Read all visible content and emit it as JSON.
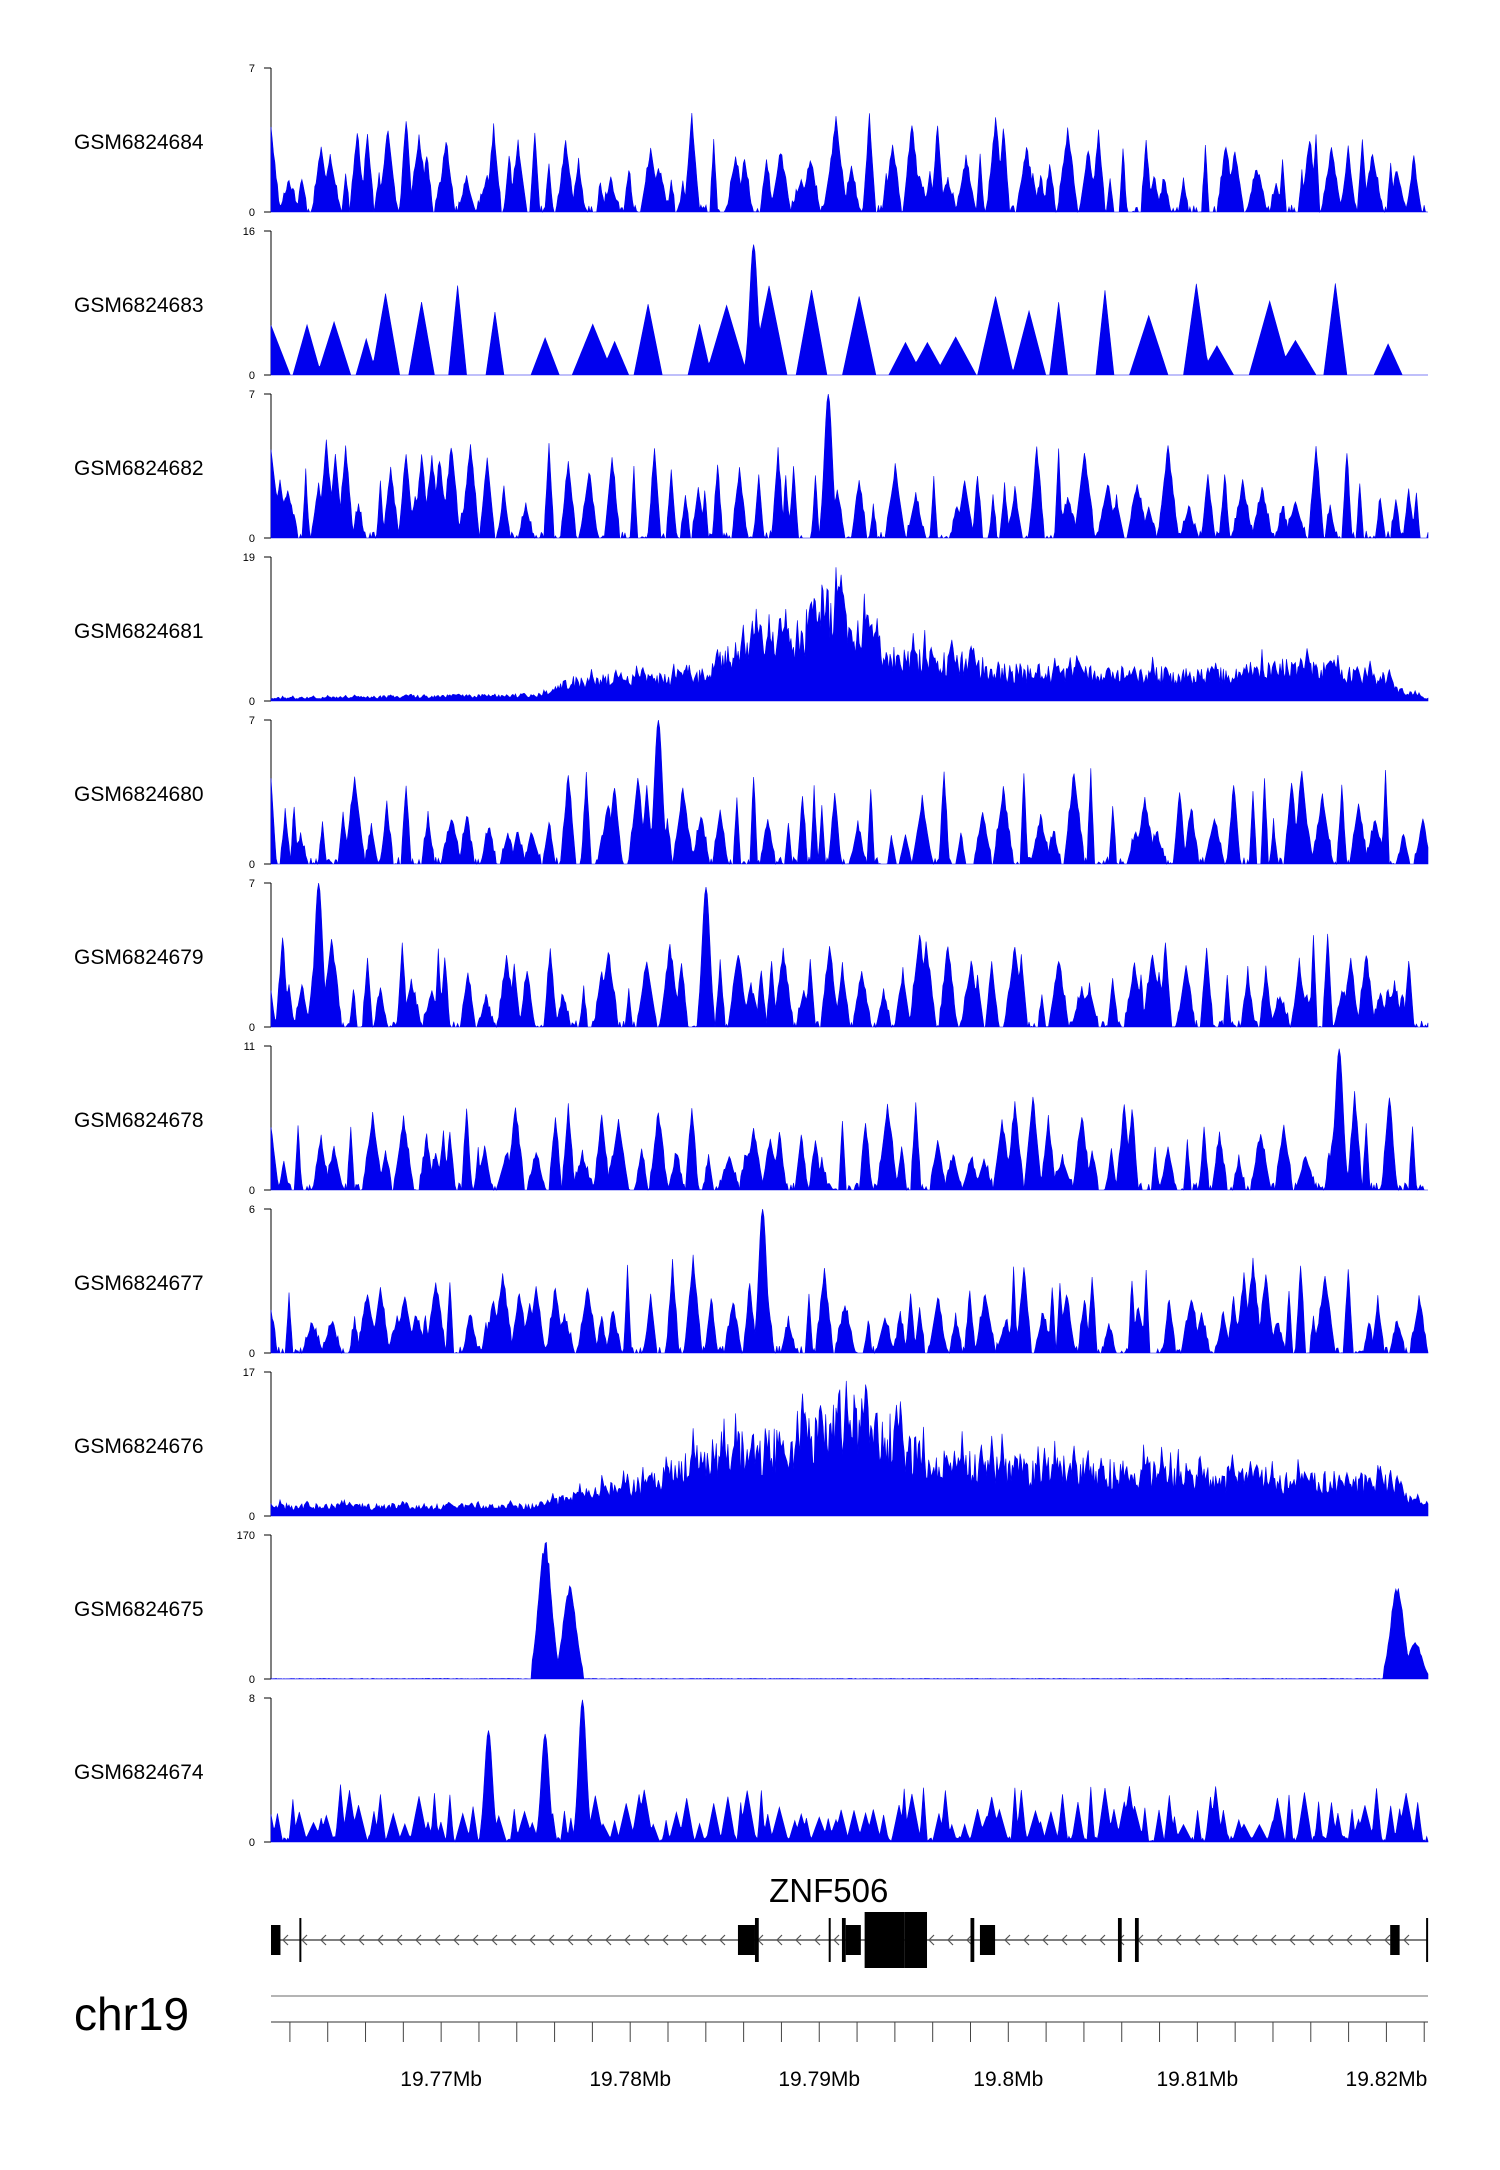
{
  "chart_data": {
    "type": "area",
    "color": "#0000ee",
    "chromosome": "chr19",
    "region_mb": [
      19.761,
      19.8222
    ],
    "tracks": [
      {
        "name": "GSM6824684",
        "ylim": [
          0,
          7
        ],
        "ymax_label": "7",
        "ymin_label": "0",
        "style": "spiky",
        "profile": []
      },
      {
        "name": "GSM6824683",
        "ylim": [
          0,
          16
        ],
        "ymax_label": "16",
        "ymin_label": "0",
        "style": "sparse",
        "profile": [
          [
            19.7865,
            14.5
          ]
        ]
      },
      {
        "name": "GSM6824682",
        "ylim": [
          0,
          7
        ],
        "ymax_label": "7",
        "ymin_label": "0",
        "style": "spiky",
        "profile": [
          [
            19.7905,
            7
          ]
        ]
      },
      {
        "name": "GSM6824681",
        "ylim": [
          0,
          19
        ],
        "ymax_label": "19",
        "ymin_label": "0",
        "style": "broad",
        "profile": [
          [
            19.761,
            0.5
          ],
          [
            19.775,
            1
          ],
          [
            19.777,
            3.5
          ],
          [
            19.7835,
            4
          ],
          [
            19.786,
            9
          ],
          [
            19.789,
            11
          ],
          [
            19.7905,
            17
          ],
          [
            19.792,
            13
          ],
          [
            19.7935,
            8
          ],
          [
            19.797,
            7
          ],
          [
            19.8,
            5
          ],
          [
            19.81,
            4.5
          ],
          [
            19.8155,
            6
          ],
          [
            19.82,
            4
          ],
          [
            19.8205,
            2
          ],
          [
            19.8222,
            0.5
          ]
        ]
      },
      {
        "name": "GSM6824680",
        "ylim": [
          0,
          7
        ],
        "ymax_label": "7",
        "ymin_label": "0",
        "style": "spiky",
        "profile": [
          [
            19.7815,
            7
          ]
        ]
      },
      {
        "name": "GSM6824679",
        "ylim": [
          0,
          7
        ],
        "ymax_label": "7",
        "ymin_label": "0",
        "style": "spiky",
        "profile": [
          [
            19.7635,
            7
          ],
          [
            19.784,
            6.8
          ]
        ]
      },
      {
        "name": "GSM6824678",
        "ylim": [
          0,
          11
        ],
        "ymax_label": "11",
        "ymin_label": "0",
        "style": "spiky",
        "profile": [
          [
            19.8175,
            10.8
          ]
        ]
      },
      {
        "name": "GSM6824677",
        "ylim": [
          0,
          6
        ],
        "ymax_label": "6",
        "ymin_label": "0",
        "style": "spiky",
        "profile": [
          [
            19.787,
            6
          ]
        ]
      },
      {
        "name": "GSM6824676",
        "ylim": [
          0,
          17
        ],
        "ymax_label": "17",
        "ymin_label": "0",
        "style": "broad",
        "profile": [
          [
            19.761,
            1.5
          ],
          [
            19.775,
            1.5
          ],
          [
            19.777,
            3
          ],
          [
            19.781,
            5
          ],
          [
            19.7845,
            10
          ],
          [
            19.7885,
            11
          ],
          [
            19.7915,
            16.5
          ],
          [
            19.796,
            8
          ],
          [
            19.82,
            5
          ],
          [
            19.8222,
            1.5
          ]
        ]
      },
      {
        "name": "GSM6824675",
        "ylim": [
          0,
          170
        ],
        "ymax_label": "170",
        "ymin_label": "0",
        "style": "peaks",
        "profile": [
          [
            19.7755,
            165
          ],
          [
            19.7768,
            110
          ],
          [
            19.8206,
            112
          ],
          [
            19.8215,
            45
          ]
        ]
      },
      {
        "name": "GSM6824674",
        "ylim": [
          0,
          8
        ],
        "ymax_label": "8",
        "ymin_label": "0",
        "style": "noisy",
        "profile": [
          [
            19.7725,
            6.2
          ],
          [
            19.7755,
            6
          ],
          [
            19.7775,
            7.9
          ]
        ]
      }
    ],
    "gene": {
      "name": "ZNF506",
      "strand": "-",
      "span_mb": [
        19.761,
        19.8222
      ],
      "exons_mb": [
        [
          19.761,
          19.7615
        ],
        [
          19.7625,
          19.7626
        ],
        [
          19.7857,
          19.7866
        ],
        [
          19.7866,
          19.7868
        ],
        [
          19.7905,
          19.7906
        ],
        [
          19.7912,
          19.7914
        ],
        [
          19.7914,
          19.7922
        ],
        [
          19.7924,
          19.7945
        ],
        [
          19.7945,
          19.7957
        ],
        [
          19.798,
          19.7982
        ],
        [
          19.7985,
          19.7993
        ],
        [
          19.8058,
          19.806
        ],
        [
          19.8067,
          19.8069
        ],
        [
          19.8202,
          19.8207
        ],
        [
          19.8221,
          19.8222
        ]
      ]
    },
    "x_axis": {
      "tick_labels": [
        "19.77Mb",
        "19.78Mb",
        "19.79Mb",
        "19.8Mb",
        "19.81Mb",
        "19.82Mb"
      ],
      "tick_values": [
        19.77,
        19.78,
        19.79,
        19.8,
        19.81,
        19.82
      ],
      "minor_step_mb": 0.002
    }
  }
}
